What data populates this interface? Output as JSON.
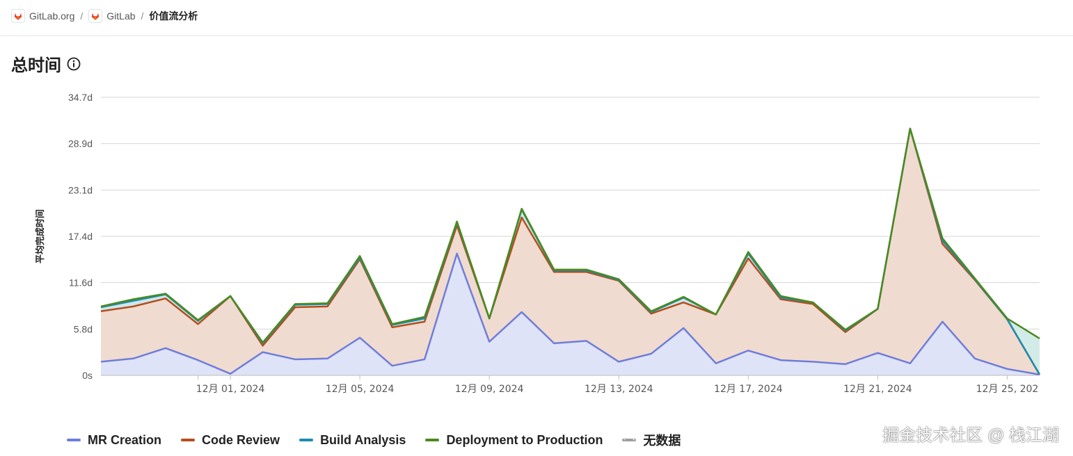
{
  "breadcrumb": {
    "items": [
      {
        "label": "GitLab.org"
      },
      {
        "label": "GitLab"
      },
      {
        "label": "价值流分析"
      }
    ],
    "separator": "/"
  },
  "page": {
    "title": "总时间"
  },
  "chart_data": {
    "type": "area",
    "stacked": true,
    "ylabel": "平均完成时间",
    "y_ticks": [
      "0s",
      "5.8d",
      "11.6d",
      "17.4d",
      "23.1d",
      "28.9d",
      "34.7d"
    ],
    "ylim": [
      0,
      34.7
    ],
    "x_ticks": [
      "12月 01, 2024",
      "12月 05, 2024",
      "12月 09, 2024",
      "12月 13, 2024",
      "12月 17, 2024",
      "12月 21, 2024",
      "12月 25, 202"
    ],
    "x_tick_indices": [
      5,
      9,
      13,
      17,
      21,
      25,
      29
    ],
    "grid": true,
    "legend_position": "bottom",
    "series": [
      {
        "name": "MR Creation",
        "color": "#6e7dda",
        "fill": "#dfe3f8",
        "values": [
          1.7,
          2.1,
          3.4,
          1.9,
          0.2,
          2.9,
          2.0,
          2.1,
          4.7,
          1.2,
          2.0,
          15.2,
          4.2,
          7.9,
          4.0,
          4.3,
          1.7,
          2.7,
          5.9,
          1.5,
          3.1,
          1.9,
          1.7,
          1.4,
          2.8,
          1.5,
          6.7,
          2.1,
          0.8,
          0.1
        ]
      },
      {
        "name": "Code Review",
        "color": "#b44e1b",
        "fill": "#f0dbd0",
        "values": [
          6.3,
          6.5,
          6.2,
          4.5,
          9.7,
          0.8,
          6.5,
          6.5,
          9.8,
          4.8,
          4.7,
          3.5,
          2.9,
          11.8,
          8.9,
          8.6,
          10.1,
          5.0,
          3.2,
          6.1,
          11.5,
          7.6,
          7.2,
          4.0,
          5.5,
          29.3,
          9.7,
          9.8,
          6.2,
          0.0
        ]
      },
      {
        "name": "Build Analysis",
        "color": "#1c8bb0",
        "fill": "#cfe7ea",
        "values": [
          0.5,
          0.7,
          0.5,
          0.4,
          0.0,
          0.3,
          0.3,
          0.3,
          0.2,
          0.3,
          0.4,
          0.4,
          0.0,
          1.0,
          0.2,
          0.2,
          0.1,
          0.2,
          0.6,
          0.0,
          0.6,
          0.2,
          0.2,
          0.2,
          0.0,
          0.0,
          0.4,
          0.1,
          0.0,
          0.0
        ]
      },
      {
        "name": "Deployment to Production",
        "color": "#4a8a1f",
        "fill": "#d3ebe6",
        "values": [
          0.1,
          0.2,
          0.1,
          0.1,
          0.0,
          0.1,
          0.1,
          0.1,
          0.2,
          0.1,
          0.2,
          0.1,
          0.0,
          0.1,
          0.1,
          0.1,
          0.1,
          0.1,
          0.1,
          0.0,
          0.2,
          0.2,
          0.0,
          0.1,
          0.0,
          0.0,
          0.3,
          0.1,
          0.1,
          4.5
        ]
      }
    ],
    "no_data_label": "无数据",
    "no_data_color": "#9e9e9e"
  },
  "watermark": "掘金技术社区 @ 栈江湖"
}
